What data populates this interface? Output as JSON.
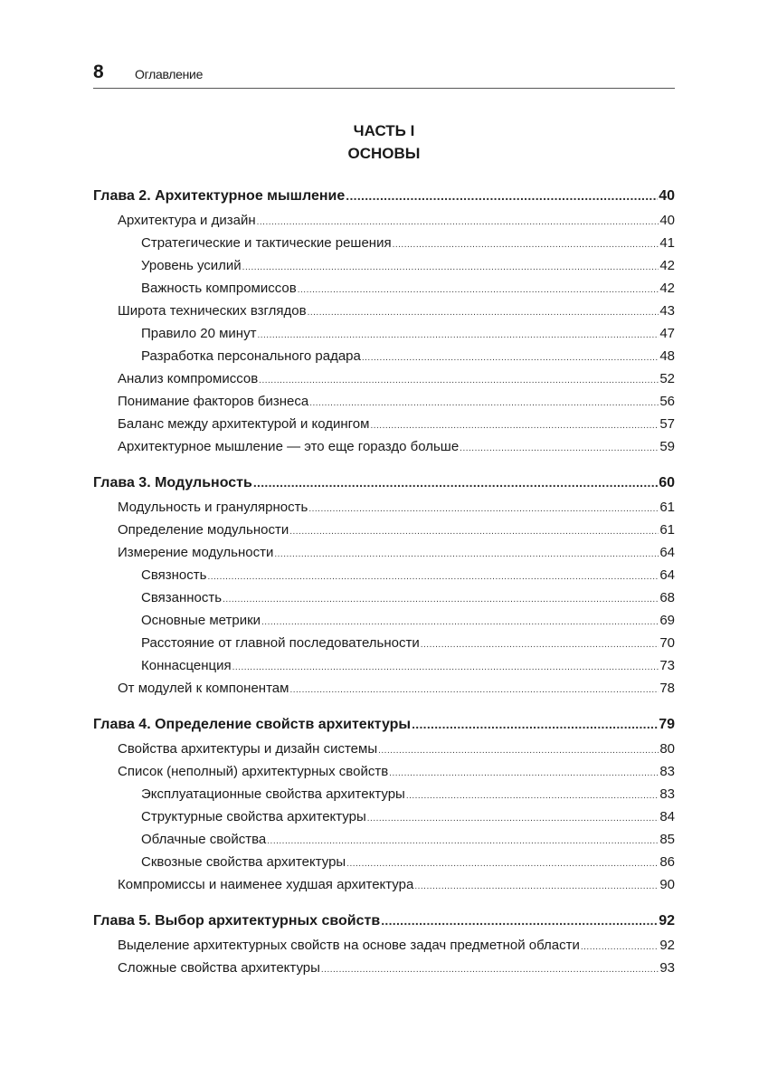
{
  "header": {
    "page_number": "8",
    "title": "Оглавление"
  },
  "part": {
    "label": "ЧАСТЬ I",
    "title": "ОСНОВЫ"
  },
  "toc": [
    {
      "level": 0,
      "title": "Глава 2. Архитектурное мышление",
      "page": "40"
    },
    {
      "level": 1,
      "title": "Архитектура и дизайн",
      "page": "40"
    },
    {
      "level": 2,
      "title": "Стратегические и тактические решения",
      "page": "41"
    },
    {
      "level": 2,
      "title": "Уровень усилий",
      "page": "42"
    },
    {
      "level": 2,
      "title": "Важность компромиссов",
      "page": "42"
    },
    {
      "level": 1,
      "title": "Широта технических взглядов",
      "page": "43"
    },
    {
      "level": 2,
      "title": "Правило 20 минут",
      "page": "47"
    },
    {
      "level": 2,
      "title": "Разработка персонального радара",
      "page": "48"
    },
    {
      "level": 1,
      "title": "Анализ компромиссов",
      "page": "52"
    },
    {
      "level": 1,
      "title": "Понимание факторов бизнеса",
      "page": "56"
    },
    {
      "level": 1,
      "title": "Баланс между архитектурой и кодингом",
      "page": "57"
    },
    {
      "level": 1,
      "title": "Архитектурное мышление — это еще гораздо больше",
      "page": "59"
    },
    {
      "level": 0,
      "title": "Глава 3. Модульность",
      "page": "60"
    },
    {
      "level": 1,
      "title": "Модульность и гранулярность",
      "page": "61"
    },
    {
      "level": 1,
      "title": "Определение модульности",
      "page": "61"
    },
    {
      "level": 1,
      "title": "Измерение модульности",
      "page": "64"
    },
    {
      "level": 2,
      "title": "Связность",
      "page": "64"
    },
    {
      "level": 2,
      "title": "Связанность",
      "page": "68"
    },
    {
      "level": 2,
      "title": "Основные метрики",
      "page": "69"
    },
    {
      "level": 2,
      "title": "Расстояние от главной последовательности",
      "page": "70"
    },
    {
      "level": 2,
      "title": "Коннасценция",
      "page": "73"
    },
    {
      "level": 1,
      "title": "От модулей к компонентам",
      "page": "78"
    },
    {
      "level": 0,
      "title": "Глава 4. Определение свойств архитектуры",
      "page": "79"
    },
    {
      "level": 1,
      "title": "Свойства архитектуры и дизайн системы",
      "page": "80"
    },
    {
      "level": 1,
      "title": "Список (неполный) архитектурных свойств",
      "page": "83"
    },
    {
      "level": 2,
      "title": "Эксплуатационные свойства архитектуры",
      "page": "83"
    },
    {
      "level": 2,
      "title": "Структурные свойства архитектуры",
      "page": "84"
    },
    {
      "level": 2,
      "title": "Облачные свойства",
      "page": "85"
    },
    {
      "level": 2,
      "title": "Сквозные свойства архитектуры",
      "page": "86"
    },
    {
      "level": 1,
      "title": "Компромиссы и наименее худшая архитектура",
      "page": "90"
    },
    {
      "level": 0,
      "title": "Глава 5. Выбор архитектурных свойств",
      "page": "92"
    },
    {
      "level": 1,
      "title": "Выделение архитектурных свойств на основе задач предметной области",
      "page": "92"
    },
    {
      "level": 1,
      "title": "Сложные свойства архитектуры",
      "page": "93"
    }
  ]
}
